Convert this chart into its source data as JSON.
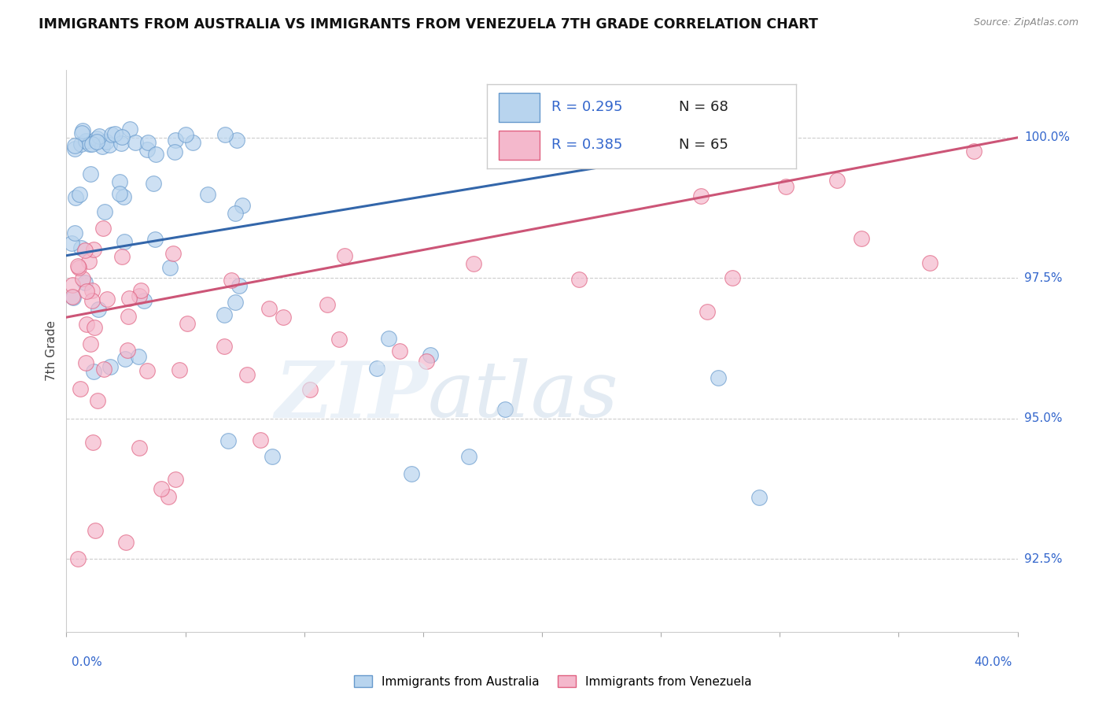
{
  "title": "IMMIGRANTS FROM AUSTRALIA VS IMMIGRANTS FROM VENEZUELA 7TH GRADE CORRELATION CHART",
  "source": "Source: ZipAtlas.com",
  "ylabel": "7th Grade",
  "ytick_values": [
    92.5,
    95.0,
    97.5,
    100.0
  ],
  "xmin": 0.0,
  "xmax": 40.0,
  "ymin": 91.2,
  "ymax": 101.2,
  "legend_r_australia": "R = 0.295",
  "legend_n_australia": "N = 68",
  "legend_r_venezuela": "R = 0.385",
  "legend_n_venezuela": "N = 65",
  "legend_label_australia": "Immigrants from Australia",
  "legend_label_venezuela": "Immigrants from Venezuela",
  "color_australia_fill": "#b8d4ee",
  "color_australia_edge": "#6699cc",
  "color_venezuela_fill": "#f4b8cc",
  "color_venezuela_edge": "#e06080",
  "color_line_australia": "#3366aa",
  "color_line_venezuela": "#cc5577",
  "color_legend_r": "#3366cc",
  "color_axis_labels": "#3366cc",
  "background_color": "#ffffff",
  "watermark_zip_color": "#d8e4f0",
  "watermark_atlas_color": "#c8dce8",
  "aus_trend_x0": 0.0,
  "aus_trend_y0": 97.9,
  "aus_trend_x1": 30.0,
  "aus_trend_y1": 100.0,
  "ven_trend_x0": 0.0,
  "ven_trend_y0": 96.8,
  "ven_trend_x1": 40.0,
  "ven_trend_y1": 100.0
}
